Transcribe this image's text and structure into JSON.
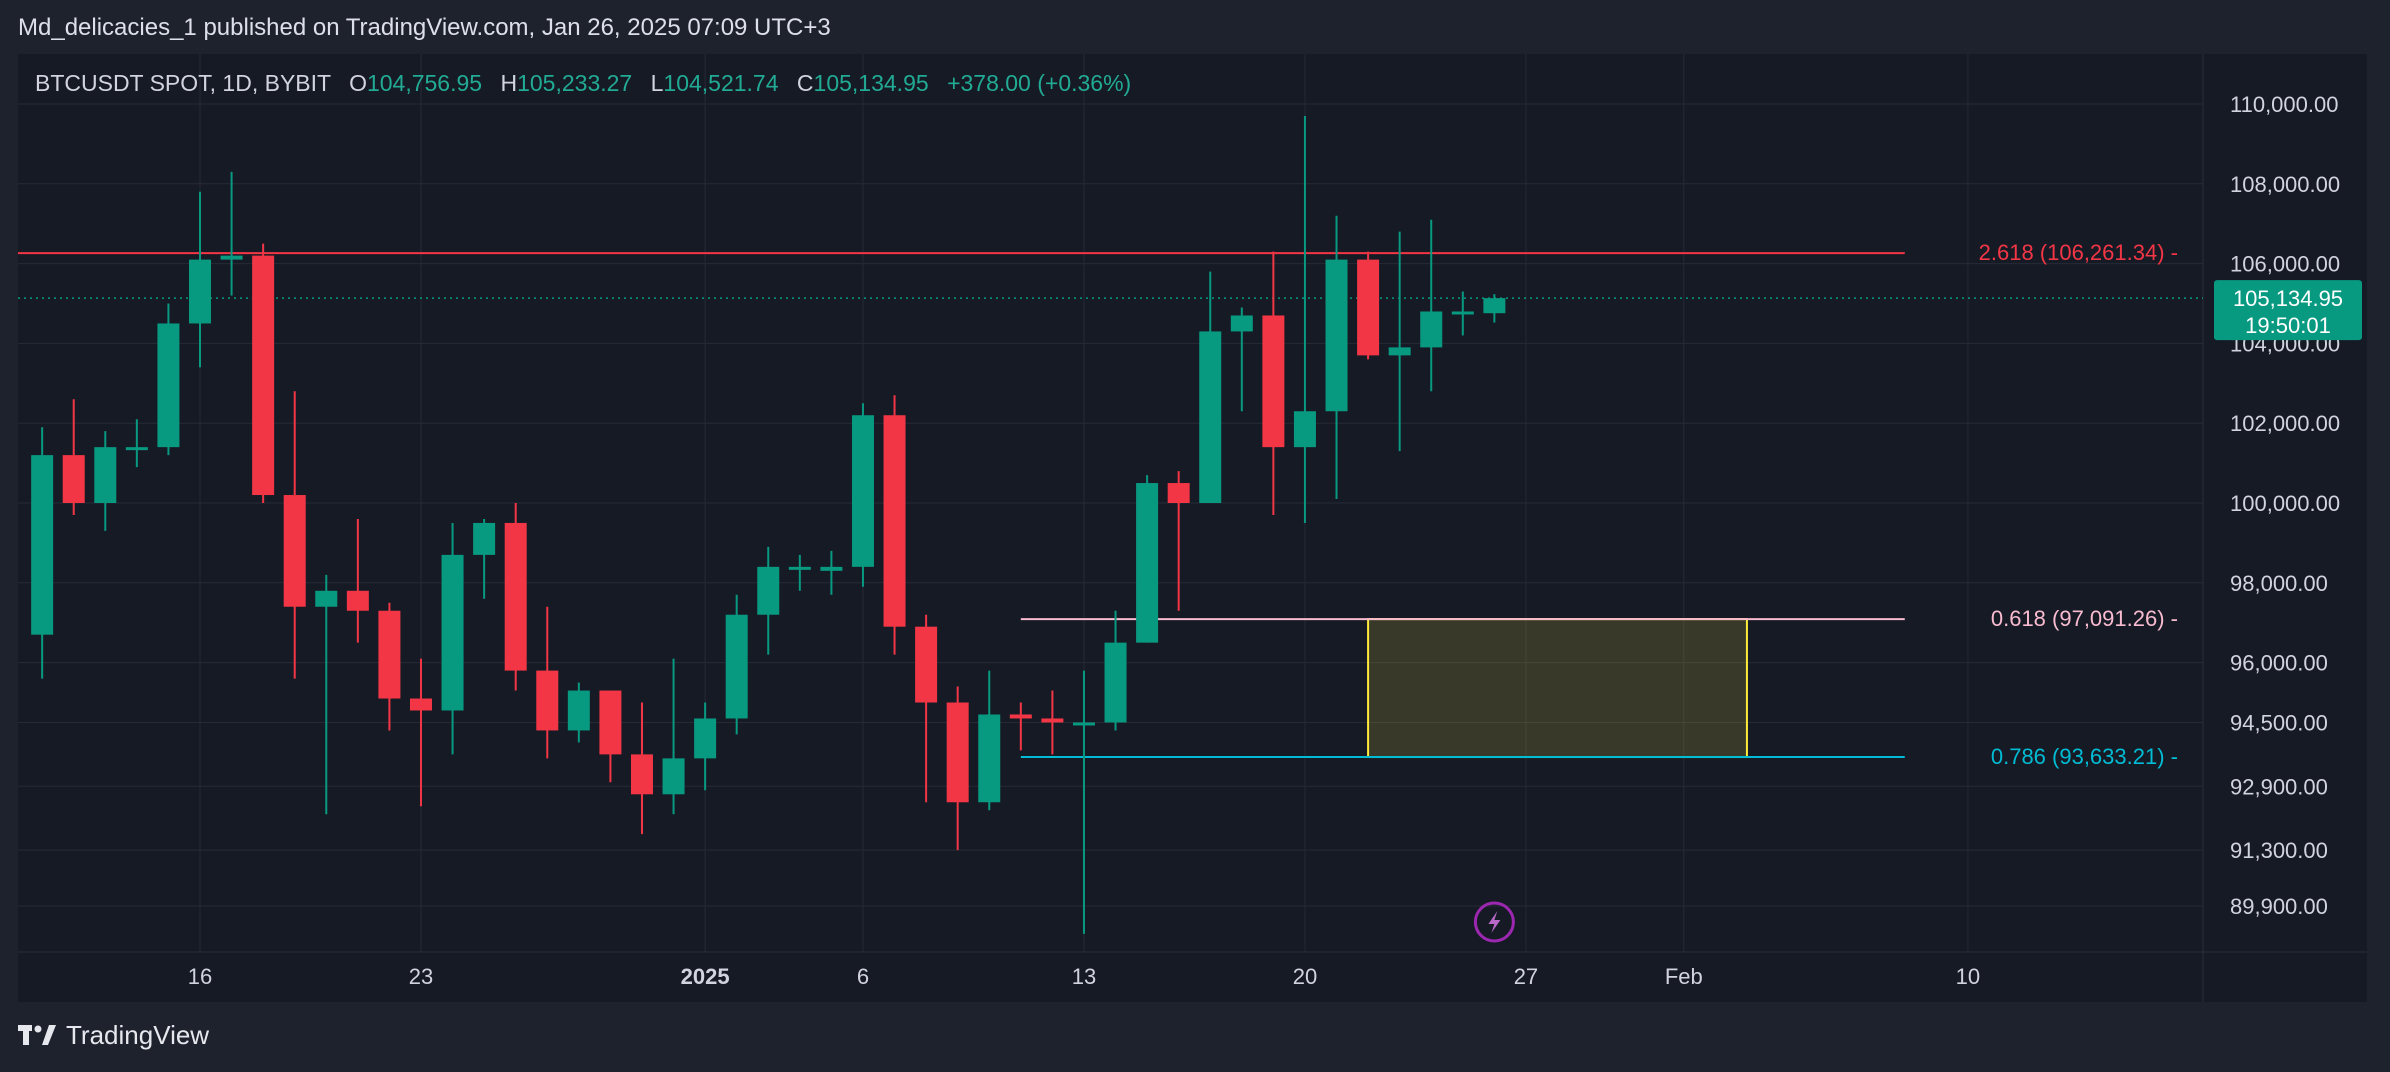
{
  "header": {
    "publish_line": "Md_delicacies_1 published on TradingView.com, Jan 26, 2025 07:09 UTC+3"
  },
  "legend": {
    "symbol": "BTCUSDT SPOT, 1D, BYBIT",
    "o_label": "O",
    "o_value": "104,756.95",
    "h_label": "H",
    "h_value": "105,233.27",
    "l_label": "L",
    "l_value": "104,521.74",
    "c_label": "C",
    "c_value": "105,134.95",
    "change": "+378.00 (+0.36%)"
  },
  "footer": {
    "brand": "TradingView"
  },
  "colors": {
    "up": "#089981",
    "down": "#f23645",
    "bg": "#161a25",
    "grid": "#262a36",
    "fib_2618": "#f23645",
    "fib_0618": "#f8bbd0",
    "fib_0786": "#00bcd4",
    "zone": "#ffeb3b"
  },
  "chart_data": {
    "type": "candlestick",
    "y_ticks": [
      {
        "v": 110000,
        "label": "110,000.00"
      },
      {
        "v": 108000,
        "label": "108,000.00"
      },
      {
        "v": 106000,
        "label": "106,000.00"
      },
      {
        "v": 104000,
        "label": "104,000.00"
      },
      {
        "v": 102000,
        "label": "102,000.00"
      },
      {
        "v": 100000,
        "label": "100,000.00"
      },
      {
        "v": 98000,
        "label": "98,000.00"
      },
      {
        "v": 96000,
        "label": "96,000.00"
      },
      {
        "v": 94500,
        "label": "94,500.00"
      },
      {
        "v": 92900,
        "label": "92,900.00"
      },
      {
        "v": 91300,
        "label": "91,300.00"
      },
      {
        "v": 89900,
        "label": "89,900.00"
      }
    ],
    "x_ticks": [
      {
        "date": "2024-12-16",
        "label": "16",
        "bold": false
      },
      {
        "date": "2024-12-23",
        "label": "23",
        "bold": false
      },
      {
        "date": "2025-01-01",
        "label": "2025",
        "bold": true
      },
      {
        "date": "2025-01-06",
        "label": "6",
        "bold": false
      },
      {
        "date": "2025-01-13",
        "label": "13",
        "bold": false
      },
      {
        "date": "2025-01-20",
        "label": "20",
        "bold": false
      },
      {
        "date": "2025-01-27",
        "label": "27",
        "bold": false
      },
      {
        "date": "2025-02-01",
        "label": "Feb",
        "bold": false
      },
      {
        "date": "2025-02-10",
        "label": "10",
        "bold": false
      }
    ],
    "candles": [
      {
        "date": "2024-12-11",
        "o": 96700,
        "h": 101900,
        "l": 95600,
        "c": 101200
      },
      {
        "date": "2024-12-12",
        "o": 101200,
        "h": 102600,
        "l": 99700,
        "c": 100000
      },
      {
        "date": "2024-12-13",
        "o": 100000,
        "h": 101800,
        "l": 99300,
        "c": 101400
      },
      {
        "date": "2024-12-14",
        "o": 101400,
        "h": 102100,
        "l": 100900,
        "c": 101400
      },
      {
        "date": "2024-12-15",
        "o": 101400,
        "h": 105000,
        "l": 101200,
        "c": 104500
      },
      {
        "date": "2024-12-16",
        "o": 104500,
        "h": 107800,
        "l": 103400,
        "c": 106100
      },
      {
        "date": "2024-12-17",
        "o": 106100,
        "h": 108300,
        "l": 105200,
        "c": 106200
      },
      {
        "date": "2024-12-18",
        "o": 106200,
        "h": 106500,
        "l": 100000,
        "c": 100200
      },
      {
        "date": "2024-12-19",
        "o": 100200,
        "h": 102800,
        "l": 95600,
        "c": 97400
      },
      {
        "date": "2024-12-20",
        "o": 97400,
        "h": 98200,
        "l": 92200,
        "c": 97800
      },
      {
        "date": "2024-12-21",
        "o": 97800,
        "h": 99600,
        "l": 96500,
        "c": 97300
      },
      {
        "date": "2024-12-22",
        "o": 97300,
        "h": 97500,
        "l": 94300,
        "c": 95100
      },
      {
        "date": "2024-12-23",
        "o": 95100,
        "h": 96100,
        "l": 92400,
        "c": 94800
      },
      {
        "date": "2024-12-24",
        "o": 94800,
        "h": 99500,
        "l": 93700,
        "c": 98700
      },
      {
        "date": "2024-12-25",
        "o": 98700,
        "h": 99600,
        "l": 97600,
        "c": 99500
      },
      {
        "date": "2024-12-26",
        "o": 99500,
        "h": 100000,
        "l": 95300,
        "c": 95800
      },
      {
        "date": "2024-12-27",
        "o": 95800,
        "h": 97400,
        "l": 93600,
        "c": 94300
      },
      {
        "date": "2024-12-28",
        "o": 94300,
        "h": 95500,
        "l": 94000,
        "c": 95300
      },
      {
        "date": "2024-12-29",
        "o": 95300,
        "h": 95300,
        "l": 93000,
        "c": 93700
      },
      {
        "date": "2024-12-30",
        "o": 93700,
        "h": 95000,
        "l": 91700,
        "c": 92700
      },
      {
        "date": "2024-12-31",
        "o": 92700,
        "h": 96100,
        "l": 92200,
        "c": 93600
      },
      {
        "date": "2025-01-01",
        "o": 93600,
        "h": 95000,
        "l": 92800,
        "c": 94600
      },
      {
        "date": "2025-01-02",
        "o": 94600,
        "h": 97700,
        "l": 94200,
        "c": 97200
      },
      {
        "date": "2025-01-03",
        "o": 97200,
        "h": 98900,
        "l": 96200,
        "c": 98400
      },
      {
        "date": "2025-01-04",
        "o": 98400,
        "h": 98700,
        "l": 97800,
        "c": 98400
      },
      {
        "date": "2025-01-05",
        "o": 98300,
        "h": 98800,
        "l": 97700,
        "c": 98400
      },
      {
        "date": "2025-01-06",
        "o": 98400,
        "h": 102500,
        "l": 97900,
        "c": 102200
      },
      {
        "date": "2025-01-07",
        "o": 102200,
        "h": 102700,
        "l": 96200,
        "c": 96900
      },
      {
        "date": "2025-01-08",
        "o": 96900,
        "h": 97200,
        "l": 92500,
        "c": 95000
      },
      {
        "date": "2025-01-09",
        "o": 95000,
        "h": 95400,
        "l": 91300,
        "c": 92500
      },
      {
        "date": "2025-01-10",
        "o": 92500,
        "h": 95800,
        "l": 92300,
        "c": 94700
      },
      {
        "date": "2025-01-11",
        "o": 94700,
        "h": 95000,
        "l": 93800,
        "c": 94600
      },
      {
        "date": "2025-01-12",
        "o": 94600,
        "h": 95300,
        "l": 93700,
        "c": 94500
      },
      {
        "date": "2025-01-13",
        "o": 94500,
        "h": 95800,
        "l": 89200,
        "c": 94500
      },
      {
        "date": "2025-01-14",
        "o": 94500,
        "h": 97300,
        "l": 94300,
        "c": 96500
      },
      {
        "date": "2025-01-15",
        "o": 96500,
        "h": 100700,
        "l": 96500,
        "c": 100500
      },
      {
        "date": "2025-01-16",
        "o": 100500,
        "h": 100800,
        "l": 97300,
        "c": 100000
      },
      {
        "date": "2025-01-17",
        "o": 100000,
        "h": 105800,
        "l": 100000,
        "c": 104300
      },
      {
        "date": "2025-01-18",
        "o": 104300,
        "h": 104900,
        "l": 102300,
        "c": 104700
      },
      {
        "date": "2025-01-19",
        "o": 104700,
        "h": 106300,
        "l": 99700,
        "c": 101400
      },
      {
        "date": "2025-01-20",
        "o": 101400,
        "h": 109700,
        "l": 99500,
        "c": 102300
      },
      {
        "date": "2025-01-21",
        "o": 102300,
        "h": 107200,
        "l": 100100,
        "c": 106100
      },
      {
        "date": "2025-01-22",
        "o": 106100,
        "h": 106300,
        "l": 103600,
        "c": 103700
      },
      {
        "date": "2025-01-23",
        "o": 103700,
        "h": 106800,
        "l": 101300,
        "c": 103900
      },
      {
        "date": "2025-01-24",
        "o": 103900,
        "h": 107100,
        "l": 102800,
        "c": 104800
      },
      {
        "date": "2025-01-25",
        "o": 104800,
        "h": 105300,
        "l": 104200,
        "c": 104800
      },
      {
        "date": "2025-01-26",
        "o": 104757,
        "h": 105233,
        "l": 104522,
        "c": 105135
      }
    ],
    "last_price": {
      "value": 105134.95,
      "label": "105,134.95",
      "countdown": "19:50:01"
    },
    "fib_levels": [
      {
        "value": 106261.34,
        "label": "2.618 (106,261.34)",
        "start": "2024-12-10",
        "end": "2025-02-08",
        "style": "fib_2618"
      },
      {
        "value": 97091.26,
        "label": "0.618 (97,091.26)",
        "start": "2025-01-11",
        "end": "2025-02-08",
        "style": "fib_0618"
      },
      {
        "value": 93633.21,
        "label": "0.786 (93,633.21)",
        "start": "2025-01-11",
        "end": "2025-02-08",
        "style": "fib_0786"
      }
    ],
    "zone": {
      "start": "2025-01-22",
      "end": "2025-02-03",
      "top": 97091.26,
      "bottom": 93633.21
    },
    "marker_icon": "lightning-icon",
    "marker_date": "2025-01-26"
  }
}
